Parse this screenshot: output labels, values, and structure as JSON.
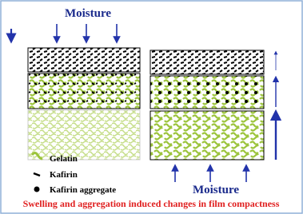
{
  "labels": {
    "moisture_top": "Moisture",
    "moisture_bottom": "Moisture"
  },
  "legend": [
    {
      "label": "Gelatin"
    },
    {
      "label": "Kafirin"
    },
    {
      "label": "Kafirin aggregate"
    }
  ],
  "caption": "Swelling and aggregation induced changes in film compactness"
}
